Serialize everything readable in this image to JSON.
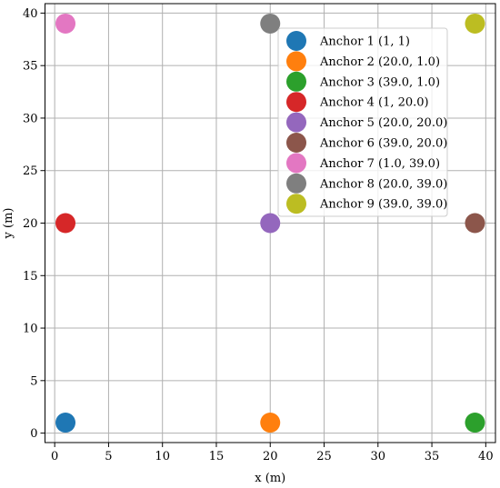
{
  "chart_data": {
    "type": "scatter",
    "title": "",
    "xlabel": "x (m)",
    "ylabel": "y (m)",
    "xlim": [
      -0.9,
      40.9
    ],
    "ylim": [
      -0.9,
      40.9
    ],
    "xticks": [
      0,
      5,
      10,
      15,
      20,
      25,
      30,
      35,
      40
    ],
    "yticks": [
      0,
      5,
      10,
      15,
      20,
      25,
      30,
      35,
      40
    ],
    "grid": true,
    "legend_position": "upper-right",
    "series": [
      {
        "name": "Anchor 1 (1, 1)",
        "x": 1,
        "y": 1,
        "color": "#1f77b4"
      },
      {
        "name": "Anchor 2 (20.0, 1.0)",
        "x": 20,
        "y": 1,
        "color": "#ff7f0e"
      },
      {
        "name": "Anchor 3 (39.0, 1.0)",
        "x": 39,
        "y": 1,
        "color": "#2ca02c"
      },
      {
        "name": "Anchor 4 (1, 20.0)",
        "x": 1,
        "y": 20,
        "color": "#d62728"
      },
      {
        "name": "Anchor 5 (20.0, 20.0)",
        "x": 20,
        "y": 20,
        "color": "#9467bd"
      },
      {
        "name": "Anchor 6 (39.0, 20.0)",
        "x": 39,
        "y": 20,
        "color": "#8c564b"
      },
      {
        "name": "Anchor 7 (1.0, 39.0)",
        "x": 1,
        "y": 39,
        "color": "#e377c2"
      },
      {
        "name": "Anchor 8 (20.0, 39.0)",
        "x": 20,
        "y": 39,
        "color": "#7f7f7f"
      },
      {
        "name": "Anchor 9 (39.0, 39.0)",
        "x": 39,
        "y": 39,
        "color": "#bcbd22"
      }
    ]
  }
}
